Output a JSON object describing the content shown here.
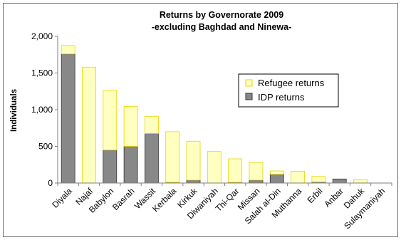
{
  "chart_data": {
    "type": "bar",
    "stacked": true,
    "title": "Returns by Governorate 2009",
    "subtitle": "-excluding Baghdad and Ninewa-",
    "xlabel": "",
    "ylabel": "Individuals",
    "ylim": [
      0,
      2000
    ],
    "yticks": [
      "0",
      "500",
      "1,000",
      "1,500",
      "2,000"
    ],
    "ytick_values": [
      0,
      500,
      1000,
      1500,
      2000
    ],
    "grid": false,
    "legend_position": "right",
    "categories": [
      "Diyala",
      "Najaf",
      "Babylon",
      "Basrah",
      "Wassit",
      "Kerbala",
      "Kirkuk",
      "Diwaniyah",
      "Thi-Qar",
      "Missan",
      "Salah al-Din",
      "Muthanna",
      "Erbil",
      "Anbar",
      "Dahuk",
      "Sulaymaniyah"
    ],
    "series": [
      {
        "name": "IDP returns",
        "color": "#888888",
        "values": [
          1760,
          0,
          450,
          500,
          675,
          10,
          40,
          0,
          10,
          40,
          120,
          0,
          15,
          55,
          0,
          0
        ]
      },
      {
        "name": "Refugee returns",
        "color": "#ffffc0",
        "values": [
          115,
          1580,
          815,
          545,
          235,
          690,
          530,
          430,
          320,
          240,
          45,
          160,
          75,
          0,
          45,
          0
        ]
      }
    ],
    "legend_order": [
      "Refugee returns",
      "IDP returns"
    ]
  },
  "colors": {
    "refugee_fill": "#ffffc0",
    "refugee_stroke": "#e8d400",
    "idp_fill": "#888888",
    "idp_stroke": "#333333",
    "axis": "#808080",
    "frame": "#6e6e6e"
  }
}
